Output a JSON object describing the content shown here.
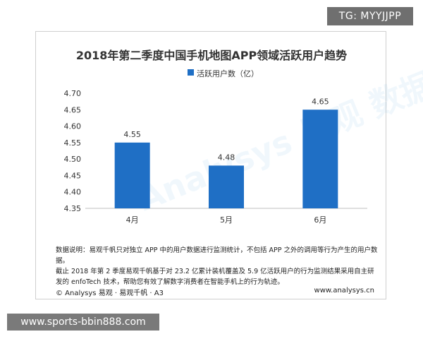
{
  "tag": "TG: MYYJJPP",
  "site": "www.sports-bbin888.com",
  "card": {
    "watermark": "Analysys 易观 数据",
    "note_line1": "数据说明：易观千帆只对独立 APP 中的用户数据进行监测统计，不包括 APP 之外的调用等行为产生的用户数据。",
    "note_line2": "截止 2018 年第 2 季度易观千帆基于对 23.2 亿累计装机覆盖及 5.9 亿活跃用户的行为监测结果采用自主研发的 enfoTech 技术，帮助您有效了解数字消费者在智能手机上的行为轨迹。",
    "footer_left": "© Analysys 易观 · 易观千帆 · A3",
    "footer_right": "www.analysys.cn"
  },
  "chart_data": {
    "type": "bar",
    "title": "2018年第二季度中国手机地图APP领域活跃用户趋势",
    "categories": [
      "4月",
      "5月",
      "6月"
    ],
    "series": [
      {
        "name": "活跃用户数（亿）",
        "values": [
          4.55,
          4.48,
          4.65
        ]
      }
    ],
    "data_labels": [
      "4.55",
      "4.48",
      "4.65"
    ],
    "ylim": [
      4.35,
      4.7
    ],
    "yticks": [
      "4.35",
      "4.40",
      "4.45",
      "4.50",
      "4.55",
      "4.60",
      "4.65",
      "4.70"
    ],
    "grid": false,
    "legend_position": "top-center",
    "colors": {
      "bar": "#1f6fc5",
      "axis": "#bfbfbf",
      "text": "#333333"
    }
  }
}
